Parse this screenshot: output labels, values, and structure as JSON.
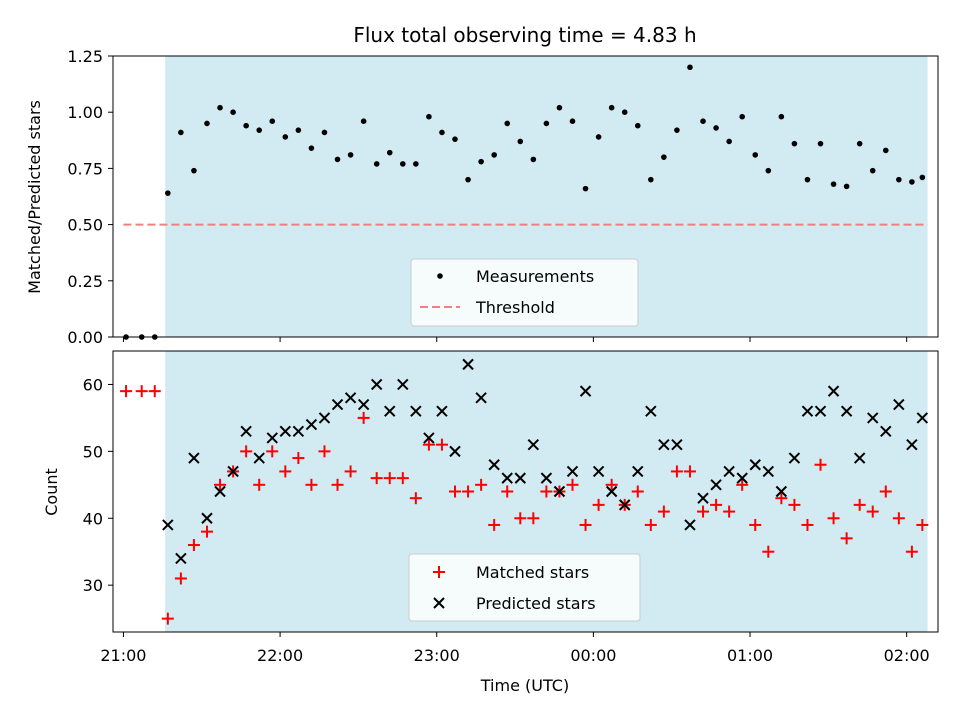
{
  "chart_data": {
    "type": "scatter",
    "title": "Flux total observing time = 4.83 h",
    "xlabel": "Time (UTC)",
    "xlim": [
      -4,
      312
    ],
    "xtick_values": [
      0,
      60,
      120,
      180,
      240,
      300
    ],
    "xtick_labels": [
      "21:00",
      "22:00",
      "23:00",
      "00:00",
      "01:00",
      "02:00"
    ],
    "shaded_span": [
      16,
      308
    ],
    "shade_color": "#add8e6",
    "panels": [
      {
        "id": "ratio",
        "ylabel": "Matched/Predicted stars",
        "ylim": [
          0,
          1.25
        ],
        "ytick_values": [
          0,
          0.25,
          0.5,
          0.75,
          1.0,
          1.25
        ],
        "ytick_labels": [
          "0.00",
          "0.25",
          "0.50",
          "0.75",
          "1.00",
          "1.25"
        ],
        "threshold": {
          "x_range": [
            0,
            308
          ],
          "y": 0.5,
          "color": "#f08080",
          "label": "Threshold"
        },
        "series": [
          {
            "name": "Measurements",
            "marker": "dot",
            "color": "#000000",
            "x": [
              1,
              7,
              12,
              17,
              22,
              27,
              32,
              37,
              42,
              47,
              52,
              57,
              62,
              67,
              72,
              77,
              82,
              87,
              92,
              97,
              102,
              107,
              112,
              117,
              122,
              127,
              132,
              137,
              142,
              147,
              152,
              157,
              162,
              167,
              172,
              177,
              182,
              187,
              192,
              197,
              202,
              207,
              212,
              217,
              222,
              227,
              232,
              237,
              242,
              247,
              252,
              257,
              262,
              267,
              272,
              277,
              282,
              287,
              292,
              297,
              302,
              306
            ],
            "y": [
              0.0,
              0.0,
              0.0,
              0.64,
              0.91,
              0.74,
              0.95,
              1.02,
              1.0,
              0.94,
              0.92,
              0.96,
              0.89,
              0.92,
              0.84,
              0.91,
              0.79,
              0.81,
              0.96,
              0.77,
              0.82,
              0.77,
              0.77,
              0.98,
              0.91,
              0.88,
              0.7,
              0.78,
              0.81,
              0.95,
              0.87,
              0.79,
              0.95,
              1.02,
              0.96,
              0.66,
              0.89,
              1.02,
              1.0,
              0.94,
              0.7,
              0.8,
              0.92,
              1.2,
              0.96,
              0.93,
              0.87,
              0.98,
              0.81,
              0.74,
              0.98,
              0.86,
              0.7,
              0.86,
              0.68,
              0.67,
              0.86,
              0.74,
              0.83,
              0.7,
              0.69,
              0.71
            ]
          }
        ],
        "legend": [
          "Measurements",
          "Threshold"
        ],
        "legend_loc": "lower center"
      },
      {
        "id": "count",
        "ylabel": "Count",
        "ylim": [
          23,
          65
        ],
        "ytick_values": [
          30,
          40,
          50,
          60
        ],
        "ytick_labels": [
          "30",
          "40",
          "50",
          "60"
        ],
        "series": [
          {
            "name": "Matched stars",
            "marker": "plus",
            "color": "#ff0000",
            "x": [
              1,
              7,
              12,
              17,
              22,
              27,
              32,
              37,
              42,
              47,
              52,
              57,
              62,
              67,
              72,
              77,
              82,
              87,
              92,
              97,
              102,
              107,
              112,
              117,
              122,
              127,
              132,
              137,
              142,
              147,
              152,
              157,
              162,
              167,
              172,
              177,
              182,
              187,
              192,
              197,
              202,
              207,
              212,
              217,
              222,
              227,
              232,
              237,
              242,
              247,
              252,
              257,
              262,
              267,
              272,
              277,
              282,
              287,
              292,
              297,
              302,
              306
            ],
            "y": [
              59,
              59,
              59,
              25,
              31,
              36,
              38,
              45,
              47,
              50,
              45,
              50,
              47,
              49,
              45,
              50,
              45,
              47,
              55,
              46,
              46,
              46,
              43,
              51,
              51,
              44,
              44,
              45,
              39,
              44,
              40,
              40,
              44,
              44,
              45,
              39,
              42,
              45,
              42,
              44,
              39,
              41,
              47,
              47,
              41,
              42,
              41,
              45,
              39,
              35,
              43,
              42,
              39,
              48,
              40,
              37,
              42,
              41,
              44,
              40,
              35,
              39
            ]
          },
          {
            "name": "Predicted stars",
            "marker": "x",
            "color": "#000000",
            "x": [
              17,
              22,
              27,
              32,
              37,
              42,
              47,
              52,
              57,
              62,
              67,
              72,
              77,
              82,
              87,
              92,
              97,
              102,
              107,
              112,
              117,
              122,
              127,
              132,
              137,
              142,
              147,
              152,
              157,
              162,
              167,
              172,
              177,
              182,
              187,
              192,
              197,
              202,
              207,
              212,
              217,
              222,
              227,
              232,
              237,
              242,
              247,
              252,
              257,
              262,
              267,
              272,
              277,
              282,
              287,
              292,
              297,
              302,
              306
            ],
            "y": [
              39,
              34,
              49,
              40,
              44,
              47,
              53,
              49,
              52,
              53,
              53,
              54,
              55,
              57,
              58,
              57,
              60,
              56,
              60,
              56,
              52,
              56,
              50,
              63,
              58,
              48,
              46,
              46,
              51,
              46,
              44,
              47,
              59,
              47,
              44,
              42,
              47,
              56,
              51,
              51,
              39,
              43,
              45,
              47,
              46,
              48,
              47,
              44,
              49,
              56,
              56,
              59,
              56,
              49,
              55,
              53,
              57,
              51,
              55
            ]
          }
        ],
        "legend": [
          "Matched stars",
          "Predicted stars"
        ],
        "legend_loc": "lower center"
      }
    ]
  }
}
